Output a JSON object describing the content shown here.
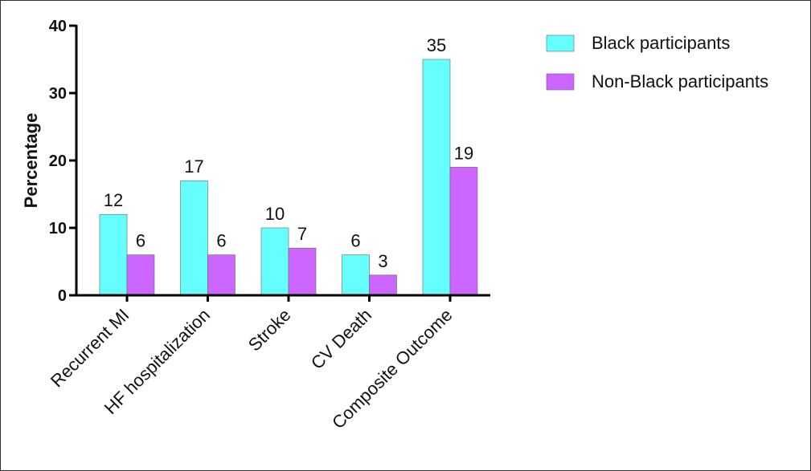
{
  "chart_data": {
    "type": "bar",
    "title": "",
    "xlabel": "",
    "ylabel": "Percentage",
    "ylim": [
      0,
      40
    ],
    "yticks": [
      0,
      10,
      20,
      30,
      40
    ],
    "categories": [
      "Recurrent MI",
      "HF hospitalization",
      "Stroke",
      "CV Death",
      "Composite Outcome"
    ],
    "series": [
      {
        "name": "Black participants",
        "values": [
          12,
          17,
          10,
          6,
          35
        ],
        "color": "#66ffff"
      },
      {
        "name": "Non-Black participants",
        "values": [
          6,
          6,
          7,
          3,
          19
        ],
        "color": "#cc66ff"
      }
    ],
    "data_labels": true,
    "grid": false,
    "legend_position": "top-right"
  }
}
